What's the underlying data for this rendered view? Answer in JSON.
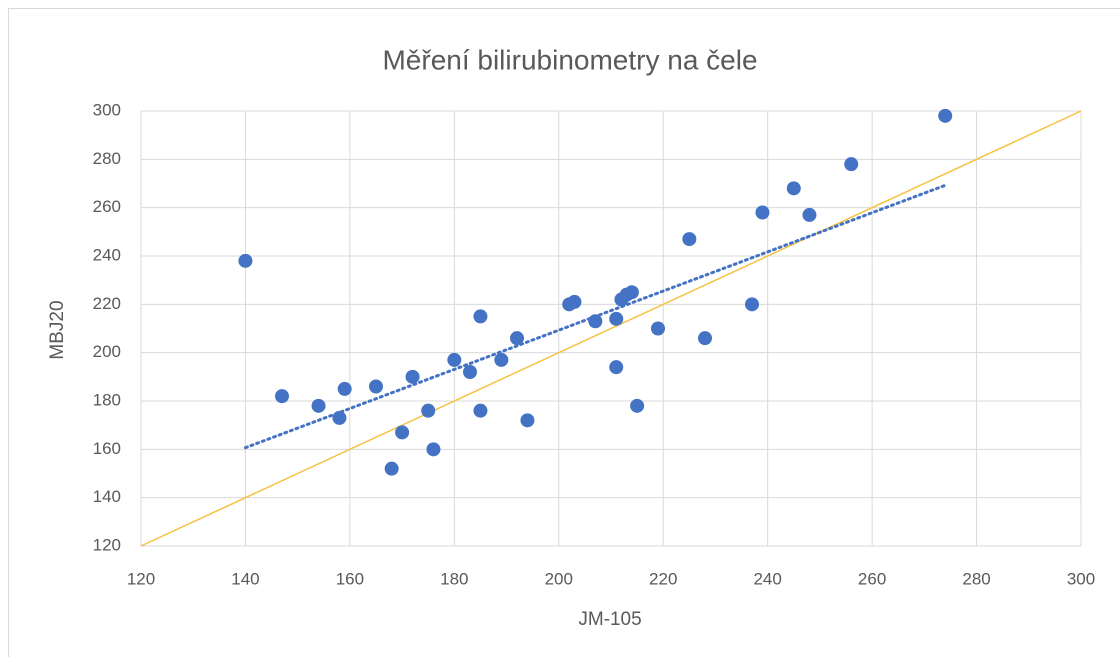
{
  "chart_data": {
    "type": "scatter",
    "title": "Měření bilirubinometry na čele",
    "xlabel": "JM-105",
    "ylabel": "MBJ20",
    "series": [
      {
        "color": "#4472c4",
        "x": [
          140,
          147,
          154,
          158,
          159,
          165,
          172,
          168,
          170,
          175,
          176,
          180,
          183,
          185,
          185,
          189,
          192,
          194,
          202,
          203,
          207,
          211,
          211,
          212,
          213,
          214,
          215,
          219,
          225,
          228,
          237,
          239,
          245,
          248,
          256,
          274
        ],
        "values": [
          238,
          182,
          178,
          173,
          185,
          186,
          190,
          152,
          167,
          176,
          160,
          197,
          192,
          215,
          176,
          197,
          206,
          172,
          220,
          221,
          213,
          214,
          194,
          222,
          224,
          225,
          178,
          210,
          247,
          206,
          220,
          258,
          268,
          257,
          278,
          298
        ]
      }
    ],
    "trendline": {
      "type": "linear",
      "color": "#4472c4"
    },
    "reference_line": {
      "type": "identity",
      "color": "#f5c242"
    },
    "xlim": [
      120,
      300
    ],
    "xticks": [
      120,
      140,
      160,
      180,
      200,
      220,
      240,
      260,
      280,
      300
    ],
    "ylim": [
      120,
      300
    ],
    "yticks": [
      120,
      140,
      160,
      180,
      200,
      220,
      240,
      260,
      280,
      300
    ],
    "grid": true
  }
}
